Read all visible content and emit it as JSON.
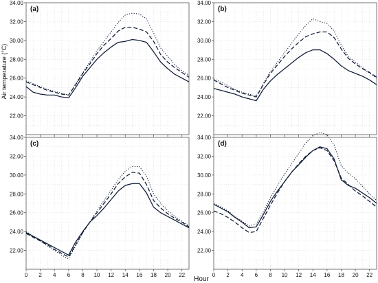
{
  "figure": {
    "xlabel": "Hour",
    "ylabel": "Air temperature (°C)"
  },
  "chart_data": [
    {
      "type": "line",
      "panel_label": "(a)",
      "xlabel": "Hour",
      "ylabel": "Air temperature (°C)",
      "xlim": [
        0,
        23
      ],
      "ylim": [
        20,
        34
      ],
      "xticks": [
        0,
        2,
        4,
        6,
        8,
        10,
        12,
        14,
        16,
        18,
        20,
        22
      ],
      "yticks": [
        22,
        24,
        26,
        28,
        30,
        32,
        34
      ],
      "ytick_labels": [
        "22.00",
        "24.00",
        "26.00",
        "28.00",
        "30.00",
        "32.00",
        "34.00"
      ],
      "grid": true,
      "legend": "none",
      "x": [
        0,
        1,
        2,
        3,
        4,
        5,
        6,
        7,
        8,
        9,
        10,
        11,
        12,
        13,
        14,
        15,
        16,
        17,
        18,
        19,
        20,
        21,
        22,
        23
      ],
      "series": [
        {
          "style": "solid",
          "values": [
            25.1,
            24.5,
            24.3,
            24.2,
            24.2,
            24.0,
            23.9,
            25.0,
            26.2,
            27.1,
            28.0,
            28.7,
            29.3,
            29.8,
            29.9,
            30.1,
            30.0,
            29.8,
            28.8,
            27.7,
            27.0,
            26.4,
            26.0,
            25.6
          ]
        },
        {
          "style": "dashed",
          "values": [
            25.6,
            25.3,
            25.0,
            24.7,
            24.5,
            24.3,
            24.2,
            25.3,
            26.5,
            27.5,
            28.6,
            29.5,
            30.2,
            31.0,
            31.4,
            31.4,
            31.2,
            30.9,
            29.9,
            28.5,
            27.7,
            27.1,
            26.6,
            26.1
          ]
        },
        {
          "style": "dotted",
          "values": [
            25.7,
            25.4,
            25.1,
            24.8,
            24.6,
            24.4,
            24.2,
            25.4,
            26.6,
            27.7,
            28.9,
            29.9,
            30.9,
            31.9,
            32.7,
            32.9,
            32.8,
            32.3,
            30.8,
            29.2,
            28.3,
            27.4,
            26.8,
            26.3
          ]
        }
      ]
    },
    {
      "type": "line",
      "panel_label": "(b)",
      "xlabel": "Hour",
      "ylabel": "Air temperature (°C)",
      "xlim": [
        0,
        23
      ],
      "ylim": [
        20,
        34
      ],
      "xticks": [
        0,
        2,
        4,
        6,
        8,
        10,
        12,
        14,
        16,
        18,
        20,
        22
      ],
      "yticks": [
        22,
        24,
        26,
        28,
        30,
        32,
        34
      ],
      "ytick_labels": [
        "22.00",
        "24.00",
        "26.00",
        "28.00",
        "30.00",
        "32.00",
        "34.00"
      ],
      "grid": true,
      "legend": "none",
      "x": [
        0,
        1,
        2,
        3,
        4,
        5,
        6,
        7,
        8,
        9,
        10,
        11,
        12,
        13,
        14,
        15,
        16,
        17,
        18,
        19,
        20,
        21,
        22,
        23
      ],
      "series": [
        {
          "style": "solid",
          "values": [
            24.9,
            24.7,
            24.5,
            24.3,
            24.0,
            23.8,
            23.6,
            24.8,
            25.7,
            26.4,
            27.0,
            27.6,
            28.2,
            28.7,
            29.0,
            29.0,
            28.6,
            28.0,
            27.3,
            26.8,
            26.5,
            26.2,
            25.8,
            25.3
          ]
        },
        {
          "style": "dashed",
          "values": [
            25.8,
            25.4,
            25.0,
            24.7,
            24.4,
            24.2,
            24.0,
            25.3,
            26.5,
            27.4,
            28.3,
            29.1,
            29.8,
            30.4,
            30.7,
            30.9,
            30.9,
            30.3,
            29.1,
            28.1,
            27.5,
            27.0,
            26.6,
            26.1
          ]
        },
        {
          "style": "dotted",
          "values": [
            25.9,
            25.6,
            25.2,
            24.8,
            24.5,
            24.3,
            24.1,
            25.4,
            26.7,
            27.7,
            28.7,
            29.7,
            30.7,
            31.6,
            32.3,
            32.0,
            31.8,
            31.0,
            29.5,
            28.3,
            27.7,
            27.1,
            26.5,
            26.0
          ]
        }
      ]
    },
    {
      "type": "line",
      "panel_label": "(c)",
      "xlabel": "Hour",
      "ylabel": "Air temperature (°C)",
      "xlim": [
        0,
        23
      ],
      "ylim": [
        20,
        34
      ],
      "xticks": [
        0,
        2,
        4,
        6,
        8,
        10,
        12,
        14,
        16,
        18,
        20,
        22
      ],
      "yticks": [
        22,
        24,
        26,
        28,
        30,
        32,
        34
      ],
      "ytick_labels": [
        "22.00",
        "24.00",
        "26.00",
        "28.00",
        "30.00",
        "32.00",
        "34.00"
      ],
      "grid": true,
      "legend": "none",
      "x": [
        0,
        1,
        2,
        3,
        4,
        5,
        6,
        7,
        8,
        9,
        10,
        11,
        12,
        13,
        14,
        15,
        16,
        17,
        18,
        19,
        20,
        21,
        22,
        23
      ],
      "series": [
        {
          "style": "solid",
          "values": [
            23.9,
            23.5,
            23.1,
            22.7,
            22.3,
            21.9,
            21.5,
            22.9,
            24.0,
            25.0,
            25.7,
            26.5,
            27.4,
            28.3,
            28.9,
            29.1,
            29.1,
            28.1,
            26.6,
            26.0,
            25.6,
            25.2,
            24.8,
            24.4
          ]
        },
        {
          "style": "dashed",
          "values": [
            23.8,
            23.4,
            23.0,
            22.6,
            22.1,
            21.7,
            21.3,
            22.6,
            23.9,
            25.0,
            26.0,
            27.0,
            28.0,
            29.1,
            29.8,
            30.3,
            30.2,
            29.0,
            27.3,
            26.5,
            25.9,
            25.4,
            25.0,
            24.5
          ]
        },
        {
          "style": "dotted",
          "values": [
            24.0,
            23.5,
            23.0,
            22.5,
            22.0,
            21.5,
            21.1,
            22.5,
            23.9,
            25.0,
            26.2,
            27.3,
            28.4,
            29.5,
            30.4,
            30.9,
            30.9,
            29.9,
            28.0,
            27.0,
            26.2,
            25.6,
            25.1,
            24.6
          ]
        }
      ]
    },
    {
      "type": "line",
      "panel_label": "(d)",
      "xlabel": "Hour",
      "ylabel": "Air temperature (°C)",
      "xlim": [
        0,
        23
      ],
      "ylim": [
        20,
        34
      ],
      "xticks": [
        0,
        2,
        4,
        6,
        8,
        10,
        12,
        14,
        16,
        18,
        20,
        22
      ],
      "yticks": [
        22,
        24,
        26,
        28,
        30,
        32,
        34
      ],
      "ytick_labels": [
        "22.00",
        "24.00",
        "26.00",
        "28.00",
        "30.00",
        "32.00",
        "34.00"
      ],
      "grid": true,
      "legend": "none",
      "x": [
        0,
        1,
        2,
        3,
        4,
        5,
        6,
        7,
        8,
        9,
        10,
        11,
        12,
        13,
        14,
        15,
        16,
        17,
        18,
        19,
        20,
        21,
        22,
        23
      ],
      "series": [
        {
          "style": "solid",
          "values": [
            26.9,
            26.5,
            26.1,
            25.5,
            25.0,
            24.4,
            24.5,
            25.8,
            27.2,
            28.3,
            29.3,
            30.3,
            31.1,
            31.9,
            32.6,
            33.0,
            32.8,
            31.7,
            29.5,
            28.9,
            28.6,
            28.1,
            27.6,
            27.0
          ]
        },
        {
          "style": "dashed",
          "values": [
            26.2,
            25.9,
            25.5,
            25.0,
            24.4,
            23.9,
            24.0,
            25.4,
            26.8,
            28.1,
            29.3,
            30.3,
            31.2,
            32.0,
            32.6,
            32.9,
            32.6,
            31.5,
            29.7,
            29.0,
            28.3,
            27.8,
            27.2,
            26.6
          ]
        },
        {
          "style": "dotted",
          "values": [
            27.0,
            26.6,
            26.2,
            25.6,
            25.1,
            24.6,
            24.8,
            26.1,
            27.6,
            28.9,
            30.1,
            31.2,
            32.3,
            33.4,
            34.2,
            34.5,
            34.3,
            33.2,
            31.0,
            30.2,
            29.6,
            28.8,
            28.0,
            27.3
          ]
        }
      ]
    }
  ],
  "colors": {
    "line": "#14203a",
    "grid": "#d9d9d9",
    "axis": "#555555",
    "text": "#111111"
  }
}
